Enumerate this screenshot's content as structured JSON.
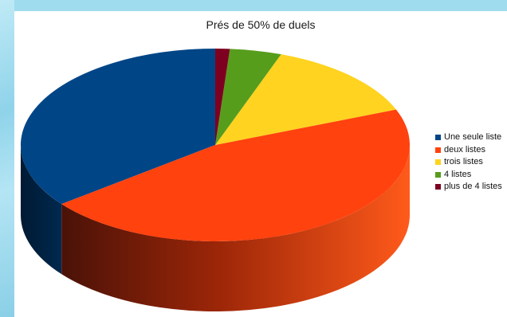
{
  "chart_data": {
    "type": "pie",
    "variant": "3d",
    "title": "Prés de 50% de duels",
    "categories": [
      "Une seule liste",
      "deux listes",
      "trois listes",
      "4 listes",
      "plus de 4 listes"
    ],
    "values": [
      35.5,
      45.5,
      13.5,
      4.3,
      1.2
    ],
    "unit": "%",
    "colors": [
      "#004586",
      "#ff420e",
      "#ffd320",
      "#579d1c",
      "#7e0021"
    ],
    "legend_position": "right"
  }
}
